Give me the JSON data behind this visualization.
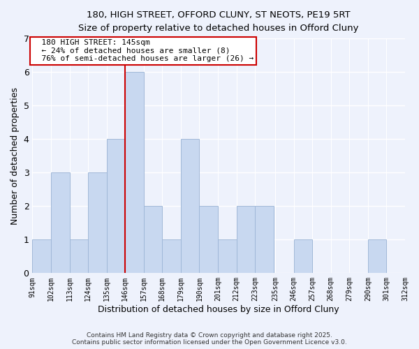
{
  "title": "180, HIGH STREET, OFFORD CLUNY, ST NEOTS, PE19 5RT",
  "subtitle": "Size of property relative to detached houses in Offord Cluny",
  "xlabel": "Distribution of detached houses by size in Offord Cluny",
  "ylabel": "Number of detached properties",
  "bar_color": "#c8d8f0",
  "bar_edge_color": "#a0b8d8",
  "reference_line_color": "#cc0000",
  "annotation_title": "180 HIGH STREET: 145sqm",
  "annotation_line1": "← 24% of detached houses are smaller (8)",
  "annotation_line2": "76% of semi-detached houses are larger (26) →",
  "annotation_box_color": "#ffffff",
  "annotation_box_edge": "#cc0000",
  "bins": [
    91,
    102,
    113,
    124,
    135,
    146,
    157,
    168,
    179,
    190,
    201,
    212,
    223,
    235,
    246,
    257,
    268,
    279,
    290,
    301,
    312
  ],
  "counts": [
    1,
    3,
    1,
    3,
    4,
    6,
    2,
    1,
    4,
    2,
    1,
    2,
    2,
    0,
    1,
    0,
    0,
    0,
    1,
    0
  ],
  "tick_labels": [
    "91sqm",
    "102sqm",
    "113sqm",
    "124sqm",
    "135sqm",
    "146sqm",
    "157sqm",
    "168sqm",
    "179sqm",
    "190sqm",
    "201sqm",
    "212sqm",
    "223sqm",
    "235sqm",
    "246sqm",
    "257sqm",
    "268sqm",
    "279sqm",
    "290sqm",
    "301sqm",
    "312sqm"
  ],
  "ylim": [
    0,
    7
  ],
  "yticks": [
    0,
    1,
    2,
    3,
    4,
    5,
    6,
    7
  ],
  "footer_line1": "Contains HM Land Registry data © Crown copyright and database right 2025.",
  "footer_line2": "Contains public sector information licensed under the Open Government Licence v3.0.",
  "background_color": "#eef2fc"
}
